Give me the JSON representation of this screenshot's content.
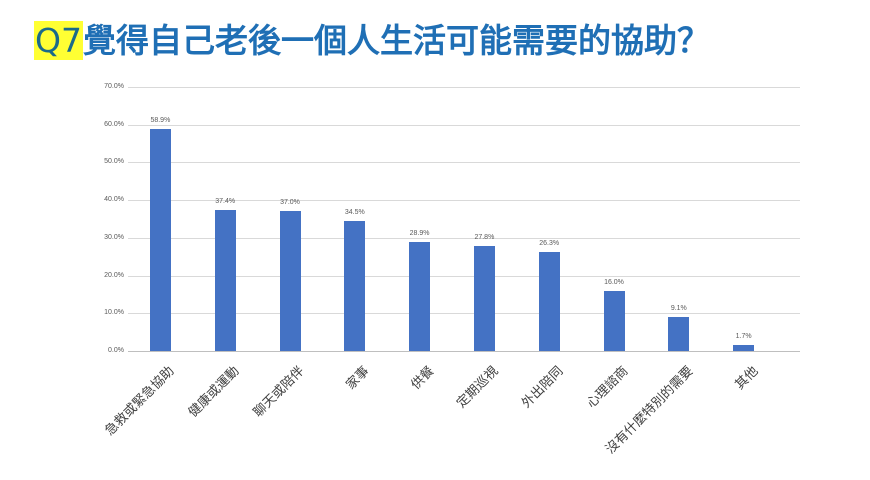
{
  "title": {
    "prefix": "Q7",
    "text": "覺得自己老後一個人生活可能需要的協助？"
  },
  "colors": {
    "bar": "#4472c4",
    "title": "#1f6fb5",
    "highlight": "#ffff33"
  },
  "chart_data": {
    "type": "bar",
    "title": "Q7覺得自己老後一個人生活可能需要的協助？",
    "xlabel": "",
    "ylabel": "",
    "ylim": [
      0,
      70
    ],
    "grid": true,
    "legend": "none",
    "yticks": [
      "0.0%",
      "10.0%",
      "20.0%",
      "30.0%",
      "40.0%",
      "50.0%",
      "60.0%",
      "70.0%"
    ],
    "categories": [
      "急救或緊急協助",
      "健康或運動",
      "聊天或陪伴",
      "家事",
      "供餐",
      "定期巡視",
      "外出陪同",
      "心理諮商",
      "沒有什麼特別的需要",
      "其他"
    ],
    "values": [
      58.9,
      37.4,
      37.0,
      34.5,
      28.9,
      27.8,
      26.3,
      16.0,
      9.1,
      1.7
    ],
    "data_labels": [
      "58.9%",
      "37.4%",
      "37.0%",
      "34.5%",
      "28.9%",
      "27.8%",
      "26.3%",
      "16.0%",
      "9.1%",
      "1.7%"
    ]
  }
}
